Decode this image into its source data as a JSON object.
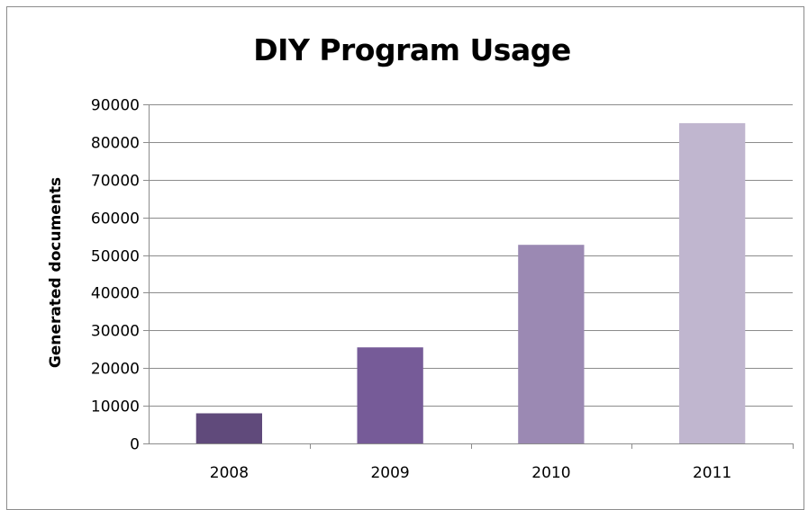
{
  "chart_data": {
    "type": "bar",
    "title": "DIY Program Usage",
    "xlabel": "",
    "ylabel": "Generated documents",
    "categories": [
      "2008",
      "2009",
      "2010",
      "2011"
    ],
    "values": [
      8000,
      25500,
      52700,
      85000
    ],
    "bar_colors": [
      "#604a7b",
      "#765b98",
      "#9b89b3",
      "#c0b6cf"
    ],
    "ylim": [
      0,
      90000
    ],
    "yticks": [
      0,
      10000,
      20000,
      30000,
      40000,
      50000,
      60000,
      70000,
      80000,
      90000
    ],
    "grid": true,
    "legend": "none"
  }
}
